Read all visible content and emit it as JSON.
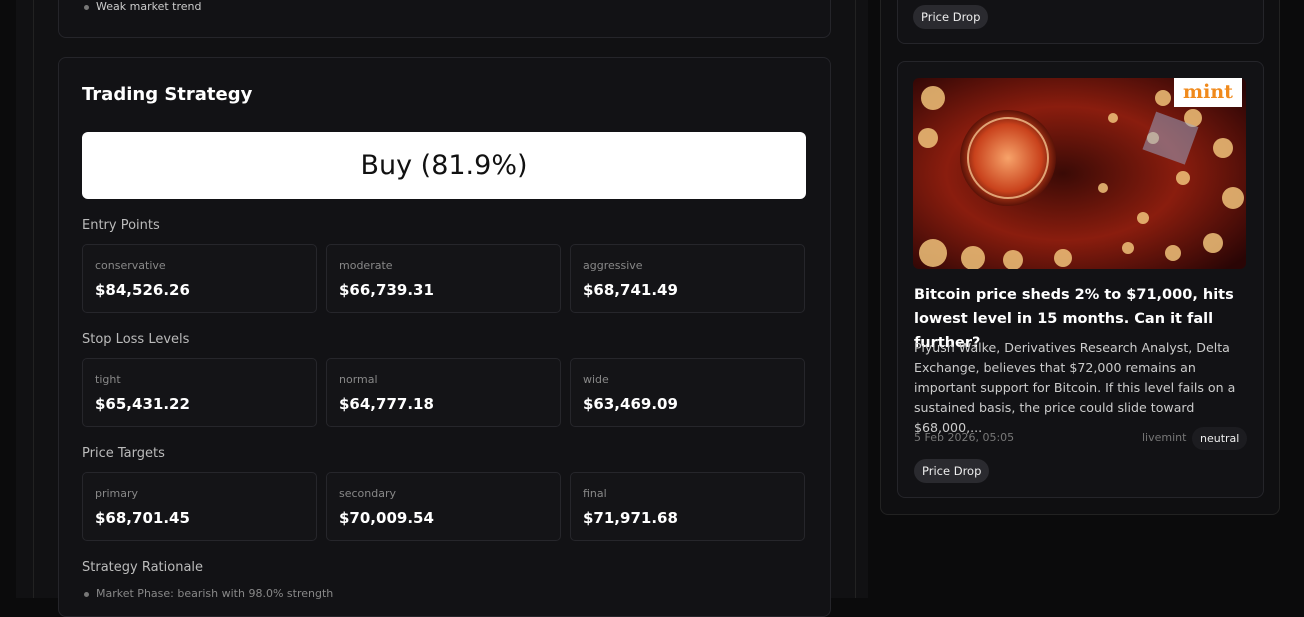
{
  "top_card": {
    "bullet": "Weak market trend"
  },
  "strategy": {
    "title": "Trading Strategy",
    "recommendation": "Buy (81.9%)",
    "sections": [
      {
        "title": "Entry Points",
        "items": [
          {
            "label": "conservative",
            "value": "$84,526.26"
          },
          {
            "label": "moderate",
            "value": "$66,739.31"
          },
          {
            "label": "aggressive",
            "value": "$68,741.49"
          }
        ]
      },
      {
        "title": "Stop Loss Levels",
        "items": [
          {
            "label": "tight",
            "value": "$65,431.22"
          },
          {
            "label": "normal",
            "value": "$64,777.18"
          },
          {
            "label": "wide",
            "value": "$63,469.09"
          }
        ]
      },
      {
        "title": "Price Targets",
        "items": [
          {
            "label": "primary",
            "value": "$68,701.45"
          },
          {
            "label": "secondary",
            "value": "$70,009.54"
          },
          {
            "label": "final",
            "value": "$71,971.68"
          }
        ]
      }
    ],
    "rationale": {
      "title": "Strategy Rationale",
      "bullets": [
        "Market Phase: bearish with 98.0% strength"
      ]
    }
  },
  "right_top": {
    "tag": "Price Drop"
  },
  "news": {
    "logo": "mint",
    "headline": "Bitcoin price sheds 2% to $71,000, hits lowest level in 15 months. Can it fall further?",
    "summary": "Piyush Walke, Derivatives Research Analyst, Delta Exchange, believes that $72,000 remains an important support for Bitcoin. If this level fails on a sustained basis, the price could slide toward $68,000,...",
    "date": "5 Feb 2026, 05:05",
    "source": "livemint",
    "sentiment": "neutral",
    "tag": "Price Drop"
  }
}
